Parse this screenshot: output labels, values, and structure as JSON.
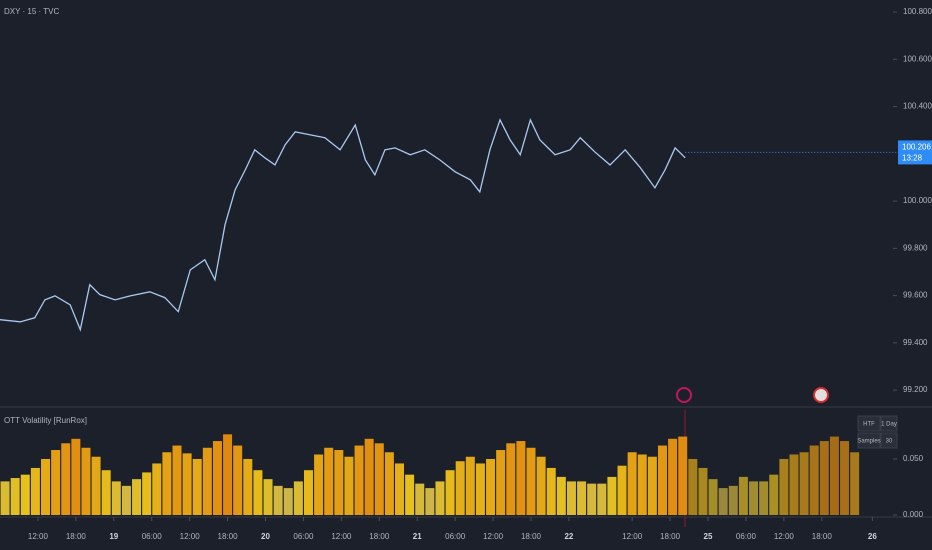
{
  "chart_data": [
    {
      "type": "line",
      "title": "DXY · 15 · TVC",
      "color": "#a9c8f0",
      "x": [
        0,
        3.2,
        5.5,
        7.1,
        8.7,
        11.1,
        12.7,
        14.2,
        15.8,
        18.2,
        20.6,
        23.7,
        26.1,
        28.2,
        30.1,
        32.4,
        34,
        35.6,
        37.2,
        38.8,
        40.3,
        41.9,
        43.5,
        45.1,
        46.7,
        49.1,
        51.4,
        53.8,
        56.2,
        57.8,
        59.3,
        60.9,
        62.5,
        64.9,
        67.2,
        69.6,
        72,
        74.4,
        75.9,
        77.5,
        79.1,
        80.7,
        82.3,
        83.9,
        85.4,
        87.8,
        90.2,
        91.8,
        94.1,
        96.5,
        98.9,
        101.3,
        103.6,
        105.2,
        106.8,
        108.4
      ],
      "values": [
        99.498,
        99.489,
        99.506,
        99.582,
        99.599,
        99.561,
        99.456,
        99.646,
        99.604,
        99.582,
        99.599,
        99.616,
        99.591,
        99.532,
        99.709,
        99.752,
        99.667,
        99.9,
        100.048,
        100.132,
        100.217,
        100.183,
        100.153,
        100.238,
        100.293,
        100.28,
        100.268,
        100.217,
        100.322,
        100.174,
        100.111,
        100.217,
        100.225,
        100.196,
        100.217,
        100.174,
        100.124,
        100.09,
        100.039,
        100.217,
        100.344,
        100.259,
        100.196,
        100.344,
        100.259,
        100.196,
        100.217,
        100.268,
        100.208,
        100.153,
        100.217,
        100.141,
        100.056,
        100.132,
        100.225,
        100.183
      ],
      "xlim": [
        0,
        140
      ],
      "ylim": [
        99.137,
        100.851
      ],
      "yticks": [
        {
          "value": 100.8,
          "label": "100.800"
        },
        {
          "value": 100.6,
          "label": "100.600"
        },
        {
          "value": 100.4,
          "label": "100.400"
        },
        {
          "value": 100.0,
          "label": "100.000"
        },
        {
          "value": 99.8,
          "label": "99.800"
        },
        {
          "value": 99.6,
          "label": "99.600"
        },
        {
          "value": 99.4,
          "label": "99.400"
        },
        {
          "value": 99.2,
          "label": "99.200"
        }
      ],
      "last_price": {
        "value": 100.206,
        "label": "100.206"
      },
      "countdown": "13:28"
    },
    {
      "type": "bar",
      "title": "OTT Volatility [RunRox]",
      "low_color": "#9e9e9e",
      "mid_color": "#e6c11c",
      "high_color": "#e0890f",
      "x": [
        0.8,
        2.4,
        4,
        5.6,
        7.2,
        8.8,
        10.4,
        12,
        13.6,
        15.2,
        16.8,
        18.4,
        20,
        21.6,
        23.2,
        24.8,
        26.4,
        28,
        29.6,
        31.2,
        32.8,
        34.4,
        36,
        37.6,
        39.2,
        40.8,
        42.4,
        44,
        45.6,
        47.2,
        48.8,
        50.4,
        52,
        53.6,
        55.2,
        56.8,
        58.4,
        60,
        61.6,
        63.2,
        64.8,
        66.4,
        68,
        69.6,
        71.2,
        72.8,
        74.4,
        76,
        77.6,
        79.2,
        80.8,
        82.4,
        84,
        85.6,
        87.2,
        88.8,
        90.4,
        92,
        93.6,
        95.2,
        96.8,
        98.4,
        100,
        101.6,
        103.2,
        104.8,
        106.4,
        108,
        109.6,
        111.2,
        112.8,
        114.4,
        116,
        117.6,
        119.2,
        120.8,
        122.4,
        124,
        125.6,
        127.2,
        128.8,
        130.4,
        132,
        133.6,
        135.2
      ],
      "values": [
        0.03,
        0.033,
        0.036,
        0.042,
        0.05,
        0.058,
        0.064,
        0.068,
        0.06,
        0.052,
        0.04,
        0.03,
        0.026,
        0.032,
        0.038,
        0.046,
        0.056,
        0.062,
        0.055,
        0.05,
        0.06,
        0.066,
        0.072,
        0.062,
        0.05,
        0.04,
        0.032,
        0.026,
        0.024,
        0.03,
        0.04,
        0.054,
        0.06,
        0.058,
        0.052,
        0.062,
        0.068,
        0.064,
        0.056,
        0.046,
        0.036,
        0.028,
        0.024,
        0.03,
        0.04,
        0.048,
        0.052,
        0.046,
        0.05,
        0.058,
        0.064,
        0.066,
        0.06,
        0.052,
        0.042,
        0.034,
        0.03,
        0.03,
        0.028,
        0.028,
        0.034,
        0.044,
        0.056,
        0.054,
        0.052,
        0.062,
        0.068,
        0.07,
        0.05,
        0.042,
        0.032,
        0.024,
        0.026,
        0.034,
        0.03,
        0.03,
        0.036,
        0.05,
        0.054,
        0.056,
        0.062,
        0.066,
        0.07,
        0.066,
        0.056
      ],
      "xlim": [
        0,
        140
      ],
      "ylim": [
        0,
        0.0955
      ],
      "yticks": [
        {
          "value": 0.05,
          "label": "0.050"
        },
        {
          "value": 0,
          "label": "0.000"
        }
      ],
      "xticks": [
        {
          "value": 6,
          "label": "12:00"
        },
        {
          "value": 12,
          "label": "18:00"
        },
        {
          "value": 18,
          "label": "19"
        },
        {
          "value": 24,
          "label": "06:00"
        },
        {
          "value": 30,
          "label": "12:00"
        },
        {
          "value": 36,
          "label": "18:00"
        },
        {
          "value": 42,
          "label": "20"
        },
        {
          "value": 48,
          "label": "06:00"
        },
        {
          "value": 54,
          "label": "12:00"
        },
        {
          "value": 60,
          "label": "18:00"
        },
        {
          "value": 66,
          "label": "21"
        },
        {
          "value": 72,
          "label": "06:00"
        },
        {
          "value": 78,
          "label": "12:00"
        },
        {
          "value": 84,
          "label": "18:00"
        },
        {
          "value": 90,
          "label": "22"
        },
        {
          "value": 100,
          "label": "12:00"
        },
        {
          "value": 106,
          "label": "18:00"
        },
        {
          "value": 112,
          "label": "25"
        },
        {
          "value": 118,
          "label": "06:00"
        },
        {
          "value": 124,
          "label": "12:00"
        },
        {
          "value": 130,
          "label": "18:00"
        },
        {
          "value": 138,
          "label": "26"
        }
      ],
      "table": [
        [
          "HTF",
          "1 Day"
        ],
        [
          "Samples",
          30
        ]
      ]
    }
  ]
}
